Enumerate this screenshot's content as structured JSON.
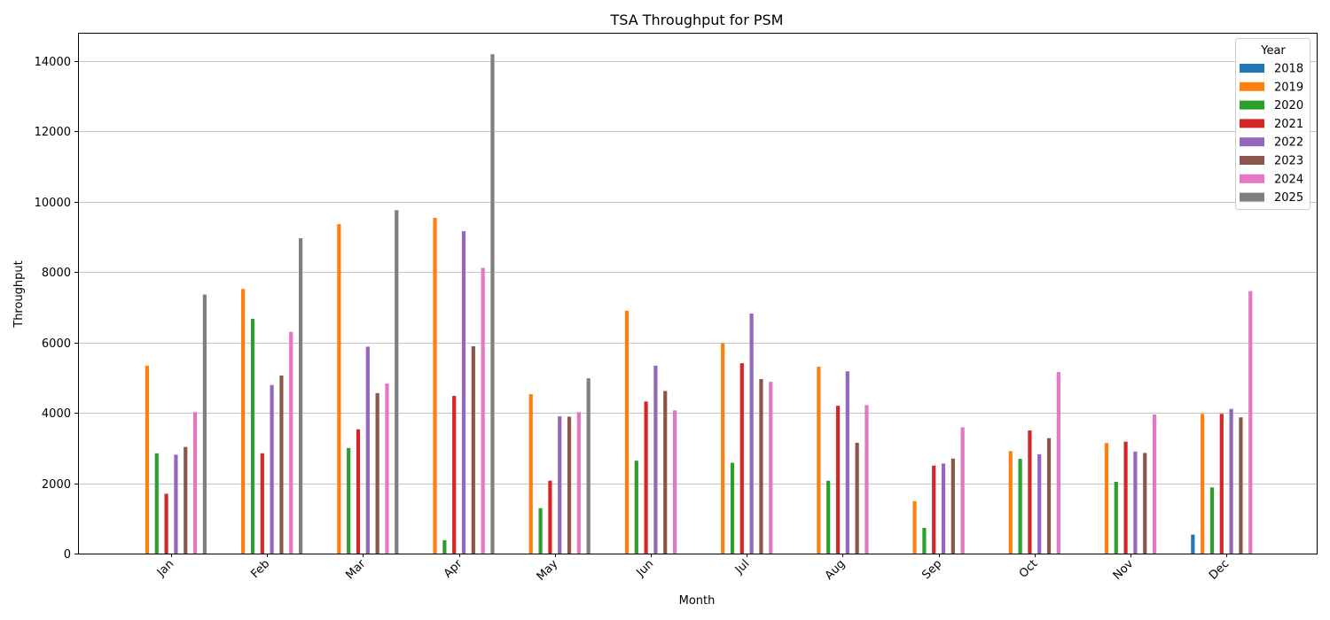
{
  "chart_data": {
    "type": "bar",
    "title": "TSA Throughput for PSM",
    "xlabel": "Month",
    "ylabel": "Throughput",
    "categories": [
      "Jan",
      "Feb",
      "Mar",
      "Apr",
      "May",
      "Jun",
      "Jul",
      "Aug",
      "Sep",
      "Oct",
      "Nov",
      "Dec"
    ],
    "ylim": [
      0,
      14800
    ],
    "yticks": [
      0,
      2000,
      4000,
      6000,
      8000,
      10000,
      12000,
      14000
    ],
    "grid": "y",
    "legend": {
      "title": "Year",
      "placement": "top-right"
    },
    "series": [
      {
        "name": "2018",
        "color": "#1f77b4",
        "values": [
          null,
          null,
          null,
          null,
          null,
          null,
          null,
          null,
          null,
          null,
          null,
          540
        ]
      },
      {
        "name": "2019",
        "color": "#ff7f0e",
        "values": [
          5340,
          7520,
          9360,
          9540,
          4530,
          6900,
          5980,
          5310,
          1490,
          2910,
          3140,
          3970
        ]
      },
      {
        "name": "2020",
        "color": "#2ca02c",
        "values": [
          2850,
          6670,
          3000,
          380,
          1290,
          2640,
          2580,
          2070,
          730,
          2690,
          2040,
          1880
        ]
      },
      {
        "name": "2021",
        "color": "#d62728",
        "values": [
          1700,
          2850,
          3530,
          4480,
          2070,
          4320,
          5410,
          4200,
          2500,
          3500,
          3180,
          3970
        ]
      },
      {
        "name": "2022",
        "color": "#9467bd",
        "values": [
          2810,
          4790,
          5880,
          9160,
          3900,
          5340,
          6820,
          5180,
          2560,
          2820,
          2900,
          4110
        ]
      },
      {
        "name": "2023",
        "color": "#8c564b",
        "values": [
          3030,
          5060,
          4560,
          5890,
          3890,
          4620,
          4960,
          3150,
          2700,
          3280,
          2860,
          3870
        ]
      },
      {
        "name": "2024",
        "color": "#e377c2",
        "values": [
          4020,
          6300,
          4830,
          8120,
          4020,
          4070,
          4880,
          4220,
          3590,
          5160,
          3950,
          7460
        ]
      },
      {
        "name": "2025",
        "color": "#7f7f7f",
        "values": [
          7360,
          8960,
          9760,
          14190,
          4980,
          null,
          null,
          null,
          null,
          null,
          null,
          null
        ]
      }
    ]
  }
}
